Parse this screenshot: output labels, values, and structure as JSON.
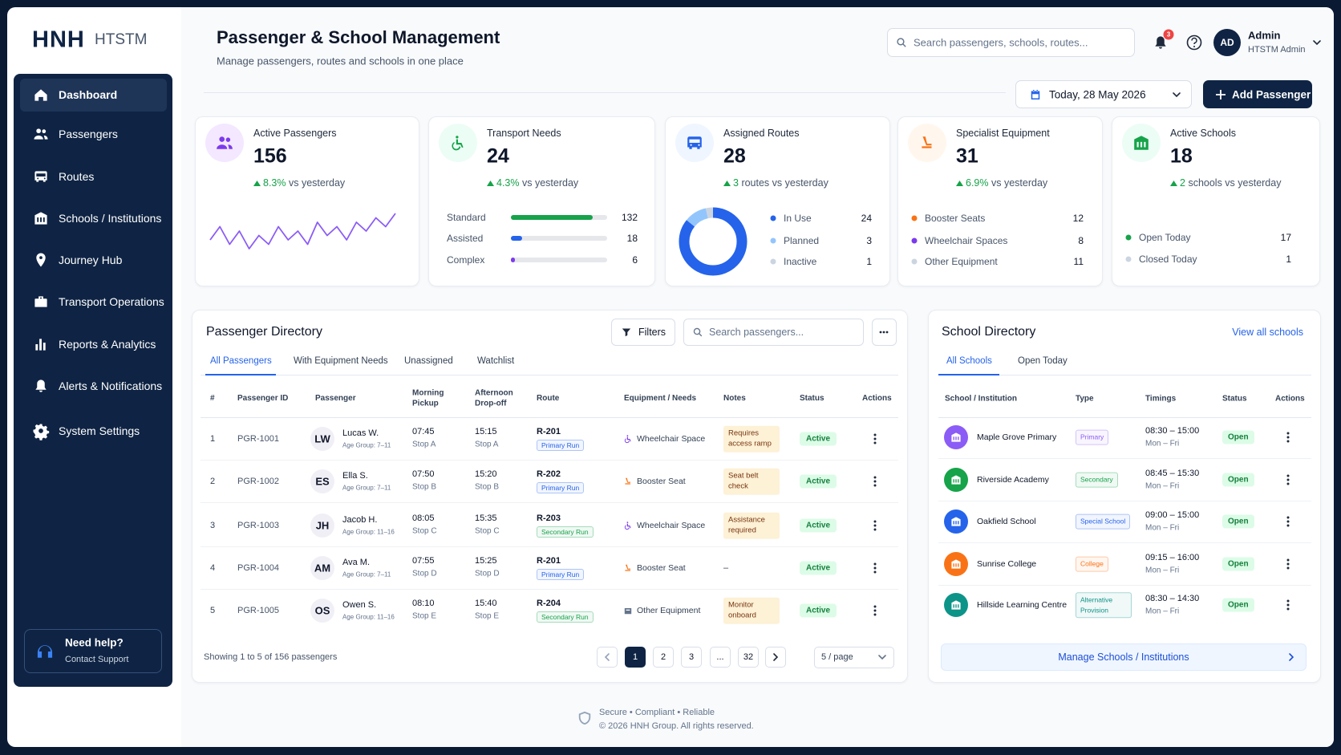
{
  "sidebar": {
    "brand": "HNH",
    "brand_sub": "HTSTM",
    "nav": [
      "Dashboard",
      "Passengers",
      "Routes",
      "Schools / Institutions",
      "Journey Hub",
      "Transport Operations",
      "Reports & Analytics",
      "Alerts & Notifications",
      "System Settings"
    ],
    "help": {
      "title": "Need help?",
      "subtitle": "Contact Support"
    }
  },
  "header": {
    "title": "Passenger & School Management",
    "subtitle": "Manage passengers, routes and schools in one place",
    "search_placeholder": "Search passengers, schools, routes...",
    "notification_count": "3",
    "user": {
      "initials": "AD",
      "name": "Admin",
      "role": "HTSTM Admin"
    },
    "date": "Today, 28 May 2026",
    "add_button": "Add Passenger"
  },
  "stats": [
    {
      "label": "Active Passengers",
      "value": 156,
      "change": "8.3%",
      "change_text": "vs yesterday",
      "color": "#7c3aed",
      "sparkline": [
        3,
        6,
        2,
        5,
        1,
        4,
        2,
        6,
        3,
        5,
        2,
        7,
        4,
        6,
        3,
        7,
        5,
        8,
        6,
        9
      ]
    },
    {
      "label": "Transport Needs",
      "value": 24,
      "change": "4.3%",
      "change_text": "vs yesterday",
      "color": "#16a34a",
      "breakdown": [
        {
          "label": "Standard",
          "value": 132,
          "color": "#16a34a"
        },
        {
          "label": "Assisted",
          "value": 18,
          "color": "#2563eb"
        },
        {
          "label": "Complex",
          "value": 6,
          "color": "#7c3aed"
        }
      ]
    },
    {
      "label": "Assigned Routes",
      "value": 28,
      "change": "3",
      "change_text": "routes vs yesterday",
      "color": "#2563eb",
      "breakdown": [
        {
          "label": "In Use",
          "value": 24,
          "color": "#2563eb"
        },
        {
          "label": "Planned",
          "value": 3,
          "color": "#93c5fd"
        },
        {
          "label": "Inactive",
          "value": 1,
          "color": "#cbd5e1"
        }
      ]
    },
    {
      "label": "Specialist Equipment",
      "value": 31,
      "change": "6.9%",
      "change_text": "vs yesterday",
      "color": "#f97316",
      "breakdown": [
        {
          "label": "Booster Seats",
          "value": 12,
          "color": "#f97316"
        },
        {
          "label": "Wheelchair Spaces",
          "value": 8,
          "color": "#7c3aed"
        },
        {
          "label": "Other Equipment",
          "value": 11,
          "color": "#cbd5e1"
        }
      ]
    },
    {
      "label": "Active Schools",
      "value": 18,
      "change": "2",
      "change_text": "schools vs yesterday",
      "color": "#16a34a",
      "breakdown": [
        {
          "label": "Open Today",
          "value": 17,
          "color": "#16a34a"
        },
        {
          "label": "Closed Today",
          "value": 1,
          "color": "#cbd5e1"
        }
      ]
    }
  ],
  "passenger_directory": {
    "title": "Passenger Directory",
    "filters": "Filters",
    "search_placeholder": "Search passengers...",
    "tabs": [
      "All Passengers",
      "With Equipment Needs",
      "Unassigned",
      "Watchlist"
    ],
    "columns": [
      "#",
      "Passenger ID",
      "Passenger",
      "Morning Pickup",
      "Afternoon Drop-off",
      "Route",
      "Equipment / Needs",
      "Notes",
      "Status",
      "Actions"
    ],
    "rows": [
      {
        "index": 1,
        "id": "PGR-1001",
        "initials": "LW",
        "name": "Lucas W.",
        "age_group": "Age Group: 7–11",
        "pickup": "07:45",
        "pickup_stop": "Stop A",
        "dropoff": "15:15",
        "dropoff_stop": "Stop A",
        "route": "R-201",
        "route_tag": "Primary Run",
        "route_color": "#2563eb",
        "equipment": "Wheelchair Space",
        "equipment_color": "#7c3aed",
        "notes": "Requires access ramp",
        "status": "Active"
      },
      {
        "index": 2,
        "id": "PGR-1002",
        "initials": "ES",
        "name": "Ella S.",
        "age_group": "Age Group: 7–11",
        "pickup": "07:50",
        "pickup_stop": "Stop B",
        "dropoff": "15:20",
        "dropoff_stop": "Stop B",
        "route": "R-202",
        "route_tag": "Primary Run",
        "route_color": "#2563eb",
        "equipment": "Booster Seat",
        "equipment_color": "#f97316",
        "notes": "Seat belt check",
        "status": "Active"
      },
      {
        "index": 3,
        "id": "PGR-1003",
        "initials": "JH",
        "name": "Jacob H.",
        "age_group": "Age Group: 11–16",
        "pickup": "08:05",
        "pickup_stop": "Stop C",
        "dropoff": "15:35",
        "dropoff_stop": "Stop C",
        "route": "R-203",
        "route_tag": "Secondary Run",
        "route_color": "#16a34a",
        "equipment": "Wheelchair Space",
        "equipment_color": "#7c3aed",
        "notes": "Assistance required",
        "status": "Active"
      },
      {
        "index": 4,
        "id": "PGR-1004",
        "initials": "AM",
        "name": "Ava M.",
        "age_group": "Age Group: 7–11",
        "pickup": "07:55",
        "pickup_stop": "Stop D",
        "dropoff": "15:25",
        "dropoff_stop": "Stop D",
        "route": "R-201",
        "route_tag": "Primary Run",
        "route_color": "#2563eb",
        "equipment": "Booster Seat",
        "equipment_color": "#f97316",
        "notes": "–",
        "status": "Active"
      },
      {
        "index": 5,
        "id": "PGR-1005",
        "initials": "OS",
        "name": "Owen S.",
        "age_group": "Age Group: 11–16",
        "pickup": "08:10",
        "pickup_stop": "Stop E",
        "dropoff": "15:40",
        "dropoff_stop": "Stop E",
        "route": "R-204",
        "route_tag": "Secondary Run",
        "route_color": "#16a34a",
        "equipment": "Other Equipment",
        "equipment_color": "#64748b",
        "notes": "Monitor onboard",
        "status": "Active"
      }
    ],
    "showing": "Showing 1 to 5 of 156 passengers",
    "pages": [
      "1",
      "2",
      "3",
      "...",
      "32"
    ],
    "page_size": "5 / page"
  },
  "school_directory": {
    "title": "School Directory",
    "view_all": "View all schools",
    "tabs": [
      "All Schools",
      "Open Today"
    ],
    "columns": [
      "School / Institution",
      "Type",
      "Timings",
      "Status",
      "Actions"
    ],
    "rows": [
      {
        "name": "Maple Grove Primary",
        "type": "Primary",
        "color": "#8b5cf6",
        "hours": "08:30 – 15:00",
        "days": "Mon – Fri",
        "status": "Open"
      },
      {
        "name": "Riverside Academy",
        "type": "Secondary",
        "color": "#16a34a",
        "hours": "08:45 – 15:30",
        "days": "Mon – Fri",
        "status": "Open"
      },
      {
        "name": "Oakfield School",
        "type": "Special School",
        "color": "#2563eb",
        "hours": "09:00 – 15:00",
        "days": "Mon – Fri",
        "status": "Open"
      },
      {
        "name": "Sunrise College",
        "type": "College",
        "color": "#f97316",
        "hours": "09:15 – 16:00",
        "days": "Mon – Fri",
        "status": "Open"
      },
      {
        "name": "Hillside Learning Centre",
        "type": "Alternative Provision",
        "color": "#0d9488",
        "hours": "08:30 – 14:30",
        "days": "Mon – Fri",
        "status": "Open"
      }
    ],
    "manage_button": "Manage Schools / Institutions"
  },
  "footer": {
    "tagline": "Secure • Compliant • Reliable",
    "copyright": "© 2026 HNH Group. All rights reserved."
  }
}
